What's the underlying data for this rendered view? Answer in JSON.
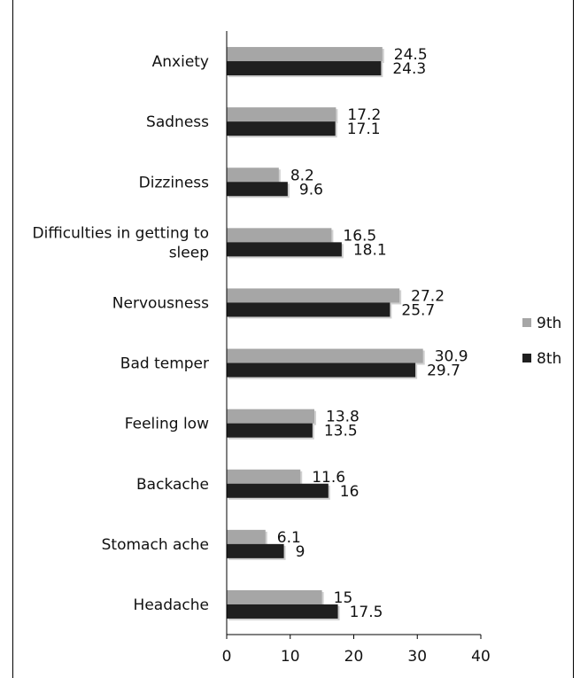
{
  "chart_data": {
    "type": "bar",
    "orientation": "horizontal",
    "categories": [
      "Anxiety",
      "Sadness",
      "Dizziness",
      "Difficulties in getting to sleep",
      "Nervousness",
      "Bad  temper",
      "Feeling  low",
      "Backache",
      "Stomach  ache",
      "Headache"
    ],
    "category_lines": [
      [
        "Anxiety"
      ],
      [
        "Sadness"
      ],
      [
        "Dizziness"
      ],
      [
        "Difficulties in getting to",
        "sleep"
      ],
      [
        "Nervousness"
      ],
      [
        "Bad  temper"
      ],
      [
        "Feeling  low"
      ],
      [
        "Backache"
      ],
      [
        "Stomach  ache"
      ],
      [
        "Headache"
      ]
    ],
    "series": [
      {
        "name": "9th",
        "color": "#a6a6a6",
        "values": [
          24.5,
          17.2,
          8.2,
          16.5,
          27.2,
          30.9,
          13.8,
          11.6,
          6.1,
          15
        ]
      },
      {
        "name": "8th",
        "color": "#1f1f1f",
        "values": [
          24.3,
          17.1,
          9.6,
          18.1,
          25.7,
          29.7,
          13.5,
          16,
          9,
          17.5
        ]
      }
    ],
    "value_labels": [
      [
        "24.5",
        "17.2",
        "8.2",
        "16.5",
        "27.2",
        "30.9",
        "13.8",
        "11.6",
        "6.1",
        "15"
      ],
      [
        "24.3",
        "17.1",
        "9.6",
        "18.1",
        "25.7",
        "29.7",
        "13.5",
        "16",
        "9",
        "17.5"
      ]
    ],
    "xlim": [
      0,
      40
    ],
    "xticks": [
      "0",
      "10",
      "20",
      "30",
      "40"
    ],
    "grid": false,
    "legend_position": "right"
  }
}
